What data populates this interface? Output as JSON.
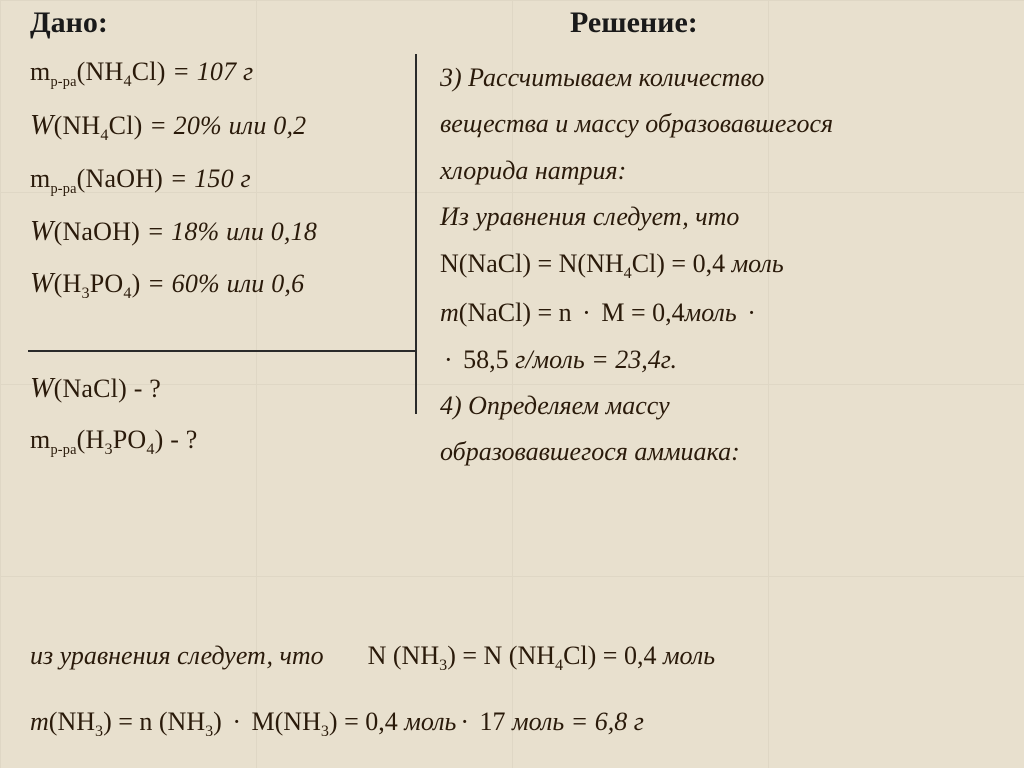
{
  "headings": {
    "given": "Дано:",
    "solution": "Решение:"
  },
  "given": {
    "l1_pre": "m",
    "l1_sub": "р-ра",
    "l1_arg": "(NH",
    "l1_arg2": "4",
    "l1_arg3": "Cl) ",
    "l1_eq": "= 107 г",
    "l2_pre": "W",
    "l2_arg": "(NH",
    "l2_arg2": "4",
    "l2_arg3": "Cl) ",
    "l2_eq": "= 20% или 0,2",
    "l3_pre": "m",
    "l3_sub": "р-ра",
    "l3_arg": "(NaOH) ",
    "l3_eq": "= 150 г",
    "l4_pre": "W",
    "l4_arg": "(NaOH) ",
    "l4_eq": "= 18% или 0,18",
    "l5_pre": "W",
    "l5_arg": "(H",
    "l5_arg2": "3",
    "l5_arg3": "PO",
    "l5_arg4": "4",
    "l5_arg5": ") ",
    "l5_eq": "= 60% или 0,6"
  },
  "find": {
    "l1_pre": "W",
    "l1_arg": "(NaCl)  - ?",
    "l2_pre": "m",
    "l2_sub": "р-ра",
    "l2_arg": "(H",
    "l2_arg2": "3",
    "l2_arg3": "PO",
    "l2_arg4": "4",
    "l2_arg5": ")  - ?"
  },
  "sol": {
    "p3a": "3) Рассчитываем количество",
    "p3b": "вещества и массу образовавшегося",
    "p3c": "хлорида натрия:",
    "p3_eqintro": "Из уравнения следует, что",
    "p3_n_pre": "N(NaCl) = N(NH",
    "p3_n_sub": "4",
    "p3_n_post": "Cl) = 0,4 ",
    "p3_n_unit": "моль",
    "m_line_a1": "m",
    "m_line_a2": "(NaCl) = n ",
    "m_line_a3": " M = 0,4",
    "m_line_a4": "моль ",
    "m_line_b1": " 58,5  ",
    "m_line_b2": "г/моль = 23,4г.",
    "p4a": "4) Определяем массу",
    "p4b": "образовавшегося аммиака:"
  },
  "bottom": {
    "intro": "из уравнения следует, что",
    "n_a": "N (NH",
    "n_b": "3",
    "n_c": ") = N (NH",
    "n_d": "4",
    "n_e": "Cl) = 0,4 ",
    "n_unit": "моль",
    "m_a": "m",
    "m_b": "(NH",
    "m_c": "3",
    "m_d": ") = n (NH",
    "m_e": "3",
    "m_f": ") ",
    "m_g": " M(NH",
    "m_h": "3",
    "m_i": ") = 0,4 ",
    "m_j": "моль",
    "m_k": " 17 ",
    "m_l": "моль  ",
    "m_res": "= 6,8 г"
  },
  "colors": {
    "bg": "#e8e0ce",
    "grid": "#d4ccb8",
    "text": "#2a1a0a",
    "heading": "#1a1a1a",
    "divider": "#2a2a2a"
  },
  "fontsize": {
    "heading": 30,
    "body": 26
  }
}
